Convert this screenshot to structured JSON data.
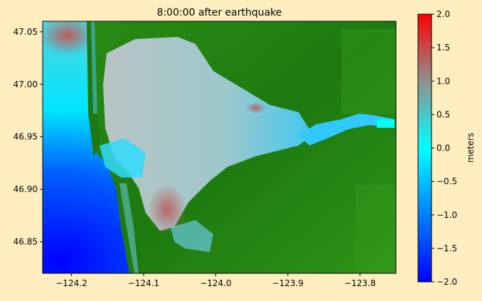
{
  "chart_data": {
    "type": "heatmap",
    "title": "8:00:00 after earthquake",
    "xlabel": "",
    "ylabel": "",
    "xlim": [
      -124.24,
      -123.75
    ],
    "ylim": [
      46.82,
      47.06
    ],
    "x_ticks": [
      {
        "value": -124.2,
        "label": "−124.2"
      },
      {
        "value": -124.1,
        "label": "−124.1"
      },
      {
        "value": -124.0,
        "label": "−124.0"
      },
      {
        "value": -123.9,
        "label": "−123.9"
      },
      {
        "value": -123.8,
        "label": "−123.8"
      }
    ],
    "y_ticks": [
      {
        "value": 47.05,
        "label": "47.05"
      },
      {
        "value": 47.0,
        "label": "47.00"
      },
      {
        "value": 46.95,
        "label": "46.95"
      },
      {
        "value": 46.9,
        "label": "46.90"
      },
      {
        "value": 46.85,
        "label": "46.85"
      }
    ],
    "colorbar": {
      "label": "meters",
      "range": [
        -2.0,
        2.0
      ],
      "ticks": [
        {
          "value": 2.0,
          "label": "2.0"
        },
        {
          "value": 1.5,
          "label": "1.5"
        },
        {
          "value": 1.0,
          "label": "1.0"
        },
        {
          "value": 0.5,
          "label": "0.5"
        },
        {
          "value": 0.0,
          "label": "0.0"
        },
        {
          "value": -0.5,
          "label": "−0.5"
        },
        {
          "value": -1.0,
          "label": "−1.0"
        },
        {
          "value": -1.5,
          "label": "−1.5"
        },
        {
          "value": -2.0,
          "label": "−2.0"
        }
      ],
      "stops": [
        {
          "value": -2.0,
          "color": "#0000ff"
        },
        {
          "value": -1.0,
          "color": "#0080ff"
        },
        {
          "value": 0.0,
          "color": "#00ffff"
        },
        {
          "value": 1.0,
          "color": "#909090"
        },
        {
          "value": 2.0,
          "color": "#ff0000"
        }
      ]
    },
    "land_color": "#208010",
    "grid": false
  }
}
